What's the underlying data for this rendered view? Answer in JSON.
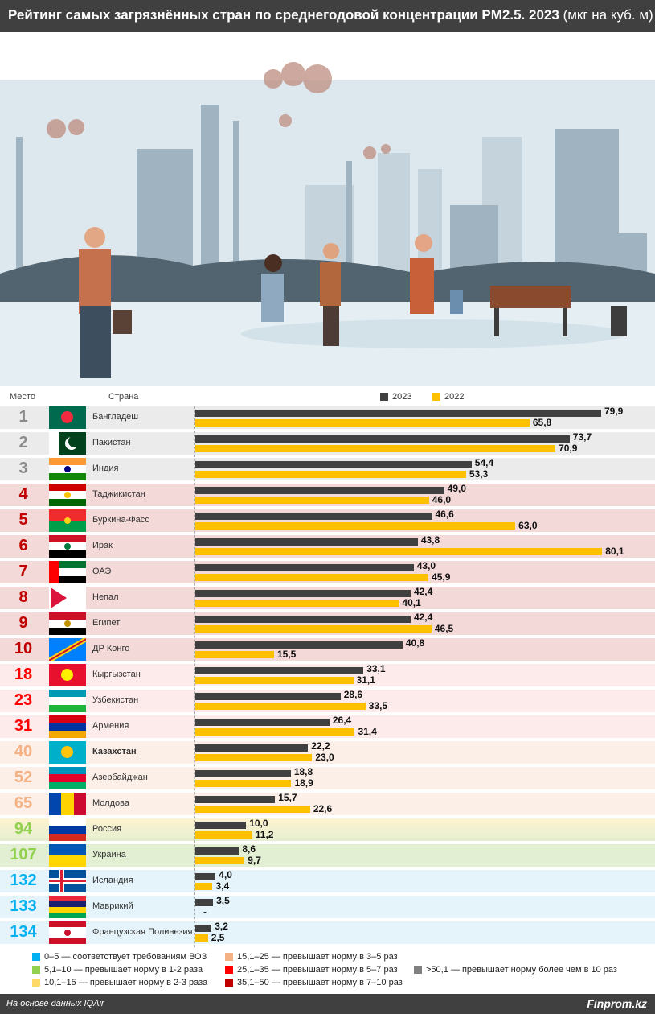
{
  "title": {
    "main": "Рейтинг самых загрязнённых стран по среднегодовой концентрации PM2.5. 2023",
    "unit": "(мкг на куб. м)"
  },
  "columns": {
    "rank": "Место",
    "country": "Страна"
  },
  "chart_data": {
    "type": "bar",
    "orientation": "horizontal",
    "title": "Рейтинг самых загрязнённых стран по среднегодовой концентрации PM2.5. 2023 (мкг на куб. м)",
    "xlim": [
      0,
      82
    ],
    "legend_position": "top",
    "series": [
      {
        "name": "2023",
        "color": "#404040"
      },
      {
        "name": "2022",
        "color": "#ffc000"
      }
    ],
    "rows": [
      {
        "rank": "1",
        "country": "Бангладеш",
        "v2023": 79.9,
        "v2022": 65.8,
        "l2023": "79,9",
        "l2022": "65,8",
        "group": "g50",
        "flag": [
          "#006a4e"
        ],
        "emblem": "circle:#f42a41"
      },
      {
        "rank": "2",
        "country": "Пакистан",
        "v2023": 73.7,
        "v2022": 70.9,
        "l2023": "73,7",
        "l2022": "70,9",
        "group": "g50",
        "flag": [
          "#01411c"
        ],
        "emblem": "crescent"
      },
      {
        "rank": "3",
        "country": "Индия",
        "v2023": 54.4,
        "v2022": 53.3,
        "l2023": "54,4",
        "l2022": "53,3",
        "group": "g50",
        "flag": [
          "#ff9933",
          "#ffffff",
          "#138808"
        ],
        "emblem": "dot:#000080"
      },
      {
        "rank": "4",
        "country": "Таджикистан",
        "v2023": 49.0,
        "v2022": 46.0,
        "l2023": "49,0",
        "l2022": "46,0",
        "group": "g35",
        "flag": [
          "#cc0000",
          "#ffffff",
          "#006600"
        ],
        "emblem": "dot:#f8c300"
      },
      {
        "rank": "5",
        "country": "Буркина-Фасо",
        "v2023": 46.6,
        "v2022": 63.0,
        "l2023": "46,6",
        "l2022": "63,0",
        "group": "g35",
        "flag": [
          "#ef2b2d",
          "#009e49"
        ],
        "emblem": "dot:#fcd116"
      },
      {
        "rank": "6",
        "country": "Ирак",
        "v2023": 43.8,
        "v2022": 80.1,
        "l2023": "43,8",
        "l2022": "80,1",
        "group": "g35",
        "flag": [
          "#ce1126",
          "#ffffff",
          "#000000"
        ],
        "emblem": "dot:#007a3d"
      },
      {
        "rank": "7",
        "country": "ОАЭ",
        "v2023": 43.0,
        "v2022": 45.9,
        "l2023": "43,0",
        "l2022": "45,9",
        "group": "g35",
        "flag": [
          "#00732f",
          "#ffffff",
          "#000000"
        ],
        "emblem": "hoist:#ff0000"
      },
      {
        "rank": "8",
        "country": "Непал",
        "v2023": 42.4,
        "v2022": 40.1,
        "l2023": "42,4",
        "l2022": "40,1",
        "group": "g35",
        "flag": [
          "#ffffff"
        ],
        "emblem": "nepal"
      },
      {
        "rank": "9",
        "country": "Египет",
        "v2023": 42.4,
        "v2022": 46.5,
        "l2023": "42,4",
        "l2022": "46,5",
        "group": "g35",
        "flag": [
          "#ce1126",
          "#ffffff",
          "#000000"
        ],
        "emblem": "dot:#c09300"
      },
      {
        "rank": "10",
        "country": "ДР Конго",
        "v2023": 40.8,
        "v2022": 15.5,
        "l2023": "40,8",
        "l2022": "15,5",
        "group": "g35",
        "flag": [
          "#007fff"
        ],
        "emblem": "diag"
      },
      {
        "rank": "18",
        "country": "Кыргызстан",
        "v2023": 33.1,
        "v2022": 31.1,
        "l2023": "33,1",
        "l2022": "31,1",
        "group": "g25",
        "flag": [
          "#e8112d"
        ],
        "emblem": "circle:#ffef00"
      },
      {
        "rank": "23",
        "country": "Узбекистан",
        "v2023": 28.6,
        "v2022": 33.5,
        "l2023": "28,6",
        "l2022": "33,5",
        "group": "g25",
        "flag": [
          "#0099b5",
          "#ffffff",
          "#1eb53a"
        ],
        "emblem": ""
      },
      {
        "rank": "31",
        "country": "Армения",
        "v2023": 26.4,
        "v2022": 31.4,
        "l2023": "26,4",
        "l2022": "31,4",
        "group": "g25",
        "flag": [
          "#d90012",
          "#0033a0",
          "#f2a800"
        ],
        "emblem": ""
      },
      {
        "rank": "40",
        "country": "Казахстан",
        "v2023": 22.2,
        "v2022": 23.0,
        "l2023": "22,2",
        "l2022": "23,0",
        "group": "g15",
        "flag": [
          "#00afca"
        ],
        "emblem": "circle:#fec50c",
        "bold": true
      },
      {
        "rank": "52",
        "country": "Азербайджан",
        "v2023": 18.8,
        "v2022": 18.9,
        "l2023": "18,8",
        "l2022": "18,9",
        "group": "g15",
        "flag": [
          "#0092bc",
          "#e4002b",
          "#00af66"
        ],
        "emblem": ""
      },
      {
        "rank": "65",
        "country": "Молдова",
        "v2023": 15.7,
        "v2022": 22.6,
        "l2023": "15,7",
        "l2022": "22,6",
        "group": "g15",
        "flag": [
          "#0046ae"
        ],
        "emblem": "moldova"
      },
      {
        "rank": "94",
        "country": "Россия",
        "v2023": 10.0,
        "v2022": 11.2,
        "l2023": "10,0",
        "l2022": "11,2",
        "group": "g10",
        "flag": [
          "#ffffff",
          "#0039a6",
          "#d52b1e"
        ],
        "emblem": ""
      },
      {
        "rank": "107",
        "country": "Украина",
        "v2023": 8.6,
        "v2022": 9.7,
        "l2023": "8,6",
        "l2022": "9,7",
        "group": "g5",
        "flag": [
          "#0057b7",
          "#ffd700"
        ],
        "emblem": ""
      },
      {
        "rank": "132",
        "country": "Исландия",
        "v2023": 4.0,
        "v2022": 3.4,
        "l2023": "4,0",
        "l2022": "3,4",
        "group": "g0",
        "flag": [
          "#02529c"
        ],
        "emblem": "nordic"
      },
      {
        "rank": "133",
        "country": "Маврикий",
        "v2023": 3.5,
        "v2022": null,
        "l2023": "3,5",
        "l2022": "-",
        "group": "g0",
        "flag": [
          "#ea2839",
          "#1a206d",
          "#ffd500",
          "#00a551"
        ],
        "emblem": ""
      },
      {
        "rank": "134",
        "country": "Французская Полинезия",
        "v2023": 3.2,
        "v2022": 2.5,
        "l2023": "3,2",
        "l2022": "2,5",
        "group": "g0",
        "flag": [
          "#ce1126",
          "#ffffff",
          "#ffffff",
          "#ce1126"
        ],
        "emblem": "dot:#c8102e"
      }
    ]
  },
  "groups": {
    "g50": {
      "rank_color": "#8c8c8c",
      "bg": "#ebebeb"
    },
    "g35": {
      "rank_color": "#c00000",
      "bg": "#f4d9d9"
    },
    "g25": {
      "rank_color": "#ff0000",
      "bg": "#fdeaea"
    },
    "g15": {
      "rank_color": "#f4b183",
      "bg": "#fcefe8"
    },
    "g10": {
      "rank_color": "#92d050",
      "bg": "#f8f0d0"
    },
    "g5": {
      "rank_color": "#92d050",
      "bg": "#e2efd2"
    },
    "g0": {
      "rank_color": "#00b0f0",
      "bg": "#e5f4fb"
    }
  },
  "legend": [
    {
      "label": "0–5 — соответствует требованиям ВОЗ",
      "color": "#00b0f0"
    },
    {
      "label": "5,1–10 — превышает норму в 1-2 раза",
      "color": "#92d050"
    },
    {
      "label": "10,1–15 — превышает норму в 2-3 раза",
      "color": "#ffd966"
    },
    {
      "label": "15,1–25 — превышает норму в 3–5 раз",
      "color": "#f4b183"
    },
    {
      "label": "25,1–35 — превышает норму в 5–7 раз",
      "color": "#ff0000"
    },
    {
      "label": "35,1–50 — превышает норму в 7–10 раз",
      "color": "#c00000"
    },
    {
      "label": ">50,1 — превышает норму более чем в 10 раз",
      "color": "#808080"
    }
  ],
  "footer": {
    "source": "На основе данных IQAir",
    "brand": "Finprom.kz"
  }
}
